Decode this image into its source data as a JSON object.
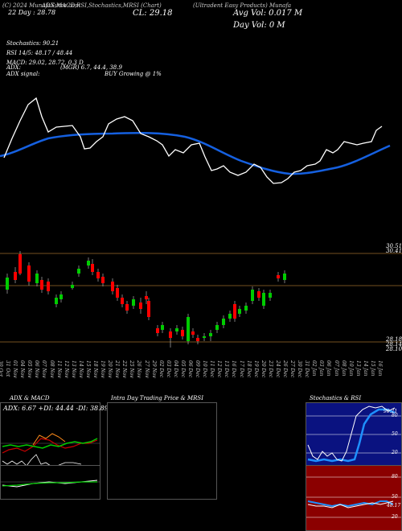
{
  "header": {
    "line1_left": "(C) 2024 MunafaSutra.com",
    "line1_mid": "ADX,MACD,RSI,Stochastics,MRSI (Chart)",
    "line1_right": "(Ultradent Easy Products) Munafa",
    "left_line2": "22 Day : 28.78",
    "close": "CL: 29.18",
    "avg_vol": "Avg Vol: 0.017 M",
    "day_vol": "Day Vol: 0   M"
  },
  "indicators": {
    "stochastics": "Stochastics: 90.21",
    "rsi": "RSI 14/5: 48.17 / 48.44",
    "macd": "MACD: 29.02, 28.72, 0.3 D",
    "adx": "ADX:",
    "adx_value": "(MGR) 6.7, 44.4, 38.9",
    "adx_signal": "ADX signal:",
    "adx_signal_value": "BUY Growing @ 1%"
  },
  "price_axis": {
    "top_a": "30.51",
    "top_b": "30.41",
    "low_a": "28.18",
    "low_b": "28.14",
    "low_c": "28.10"
  },
  "dates": [
    "30 Oct",
    "31 Oct",
    "01 Nov",
    "04 Nov",
    "05 Nov",
    "06 Nov",
    "07 Nov",
    "08 Nov",
    "11 Nov",
    "12 Nov",
    "13 Nov",
    "14 Nov",
    "15 Nov",
    "18 Nov",
    "19 Nov",
    "20 Nov",
    "21 Nov",
    "22 Nov",
    "25 Nov",
    "26 Nov",
    "27 Nov",
    "29 Nov",
    "02 Dec",
    "03 Dec",
    "04 Dec",
    "05 Dec",
    "06 Dec",
    "09 Dec",
    "10 Dec",
    "11 Dec",
    "12 Dec",
    "13 Dec",
    "16 Dec",
    "17 Dec",
    "18 Dec",
    "19 Dec",
    "20 Dec",
    "23 Dec",
    "24 Dec",
    "26 Dec",
    "27 Dec",
    "30 Dec",
    "31 Dec",
    "02 Jan",
    "03 Jan",
    "06 Jan",
    "07 Jan",
    "08 Jan",
    "10 Jan",
    "13 Jan",
    "14 Jan",
    "15 Jan",
    "16 Jan"
  ],
  "panels": {
    "adx_macd_title": "ADX & MACD",
    "adx_readout": "ADX: 6.67  +DI: 44.44  -DI: 38.89",
    "intraday_title": "Intra Day Trading Price & MRSI",
    "stoch_title": "Stochastics & RSI",
    "stoch_value": "90.21",
    "stoch_ticks": [
      "80",
      "50",
      "20"
    ],
    "rsi_ticks": [
      "80",
      "50",
      "20"
    ],
    "rsi_value": "48.17"
  },
  "colors": {
    "up": "#00cc00",
    "down": "#ff0000",
    "ma": "#1560e0",
    "stoch_bg": "#0a1280",
    "rsi_bg": "#8b0000"
  }
}
